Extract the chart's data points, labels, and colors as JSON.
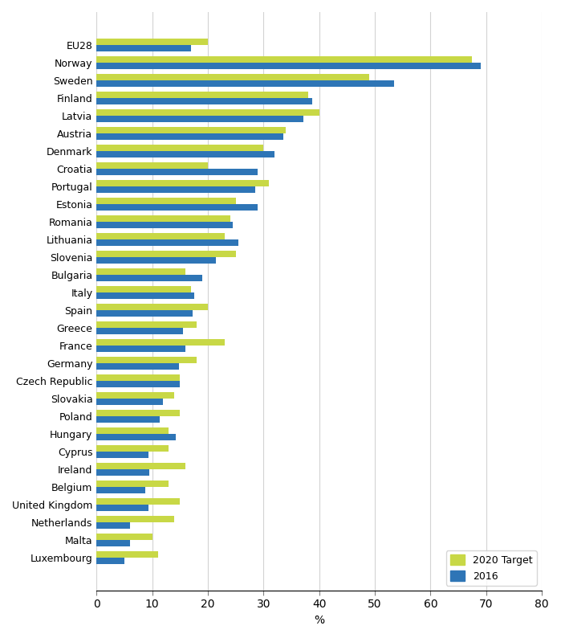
{
  "countries": [
    "EU28",
    "Norway",
    "Sweden",
    "Finland",
    "Latvia",
    "Austria",
    "Denmark",
    "Croatia",
    "Portugal",
    "Estonia",
    "Romania",
    "Lithuania",
    "Slovenia",
    "Bulgaria",
    "Italy",
    "Spain",
    "Greece",
    "France",
    "Germany",
    "Czech Republic",
    "Slovakia",
    "Poland",
    "Hungary",
    "Cyprus",
    "Ireland",
    "Belgium",
    "United Kingdom",
    "Netherlands",
    "Malta",
    "Luxembourg"
  ],
  "target_2020": [
    20,
    67.5,
    49,
    38,
    40,
    34,
    30,
    20,
    31,
    25,
    24,
    23,
    25,
    16,
    17,
    20,
    18,
    23,
    18,
    15,
    14,
    15,
    13,
    13,
    16,
    13,
    15,
    14,
    10,
    11
  ],
  "value_2016": [
    17,
    69,
    53.5,
    38.7,
    37.2,
    33.5,
    32,
    29,
    28.5,
    29,
    24.5,
    25.5,
    21.5,
    19,
    17.5,
    17.3,
    15.5,
    16,
    14.8,
    14.9,
    12,
    11.3,
    14.3,
    9.3,
    9.5,
    8.7,
    9.3,
    6,
    6,
    5
  ],
  "color_target": "#c8d846",
  "color_2016": "#2e75b6",
  "xlabel": "%",
  "xlim": [
    0,
    80
  ],
  "xticks": [
    0,
    10,
    20,
    30,
    40,
    50,
    60,
    70,
    80
  ],
  "legend_target": "2020 Target",
  "legend_2016": "2016",
  "figsize": [
    6.99,
    7.94
  ],
  "dpi": 100
}
